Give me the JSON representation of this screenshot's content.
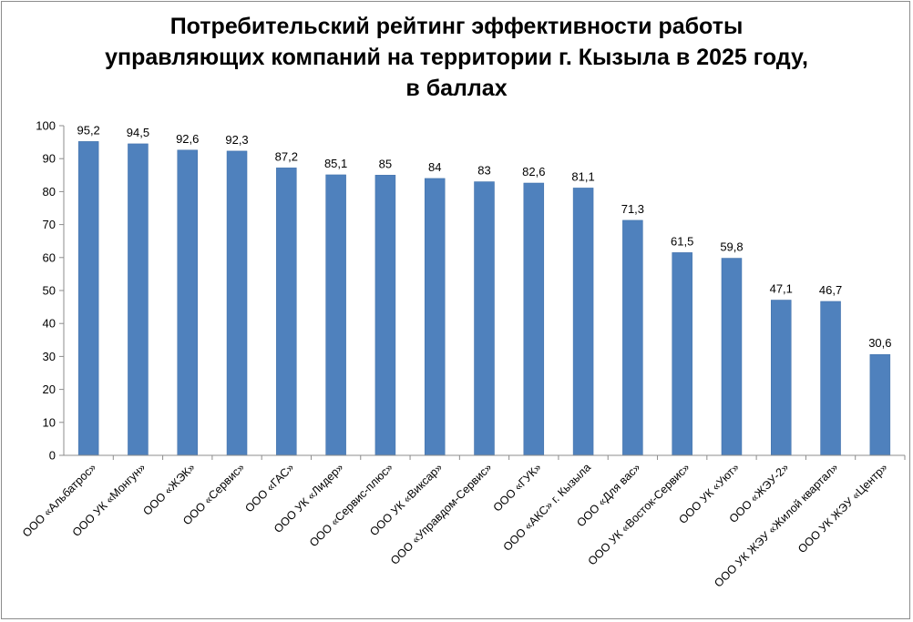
{
  "chart_data": {
    "type": "bar",
    "title_lines": [
      "Потребительский рейтинг эффективности работы",
      "управляющих компаний на территории г. Кызыла в 2025 году,",
      "в баллах"
    ],
    "categories": [
      "ООО «Альбатрос»",
      "ООО УК «Монгун»",
      "ООО «ЖЭК»",
      "ООО «Сервис»",
      "ООО «ГАС»",
      "ООО УК «Лидер»",
      "ООО «Сервис-плюс»",
      "ООО УК «Виксар»",
      "ООО «Управдом-Сервис»",
      "ООО «ГУК»",
      "ООО «АКС» г. Кызыла",
      "ООО «Для вас»",
      "ООО УК «Восток-Сервис»",
      "ООО УК «Уют»",
      "ООО «ЖЭУ-2»",
      "ООО УК ЖЭУ «Жилой квартал»",
      "ООО УК ЖЭУ «Центр»"
    ],
    "values": [
      95.2,
      94.5,
      92.6,
      92.3,
      87.2,
      85.1,
      85,
      84,
      83,
      82.6,
      81.1,
      71.3,
      61.5,
      59.8,
      47.1,
      46.7,
      30.6
    ],
    "value_labels": [
      "95,2",
      "94,5",
      "92,6",
      "92,3",
      "87,2",
      "85,1",
      "85",
      "84",
      "83",
      "82,6",
      "81,1",
      "71,3",
      "61,5",
      "59,8",
      "47,1",
      "46,7",
      "30,6"
    ],
    "y_ticks": [
      "0",
      "10",
      "20",
      "30",
      "40",
      "50",
      "60",
      "70",
      "80",
      "90",
      "100"
    ],
    "ylim": [
      0,
      100
    ],
    "grid": false,
    "legend": "none",
    "bar_color": "#4f81bd",
    "bar_edge_color": "#3f6fa8",
    "axis_color": "#8c8c8c"
  }
}
